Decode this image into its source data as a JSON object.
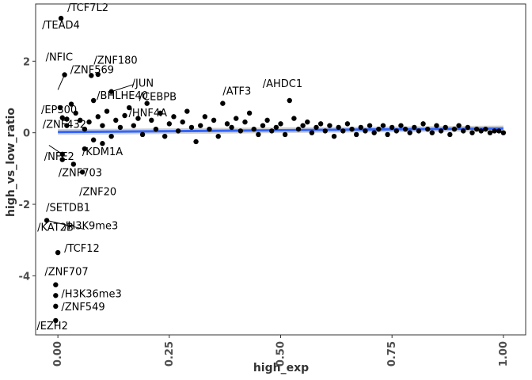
{
  "chart_data": {
    "type": "scatter",
    "xlabel": "high_exp",
    "ylabel": "high_vs_low_ratio",
    "xlim": [
      -0.05,
      1.05
    ],
    "ylim": [
      -5.65,
      3.6
    ],
    "x_ticks": [
      0.0,
      0.25,
      0.5,
      0.75,
      1.0
    ],
    "x_tick_labels": [
      "0.00",
      "0.25",
      "0.50",
      "0.75",
      "1.00"
    ],
    "y_ticks": [
      -4,
      -2,
      0,
      2
    ],
    "y_tick_labels": [
      "-4",
      "-2",
      "0",
      "2"
    ],
    "grid": false,
    "legend": "none",
    "colors": {
      "points": "#000000",
      "trend": "#3366FF",
      "band": "#b3b3b3",
      "frame": "#333333"
    },
    "trend_line": {
      "x": [
        0.0,
        1.0
      ],
      "y": [
        0.02,
        0.12
      ]
    },
    "labeled_points": [
      {
        "label": "/TCF7L2",
        "x": 0.007,
        "y": 3.2
      },
      {
        "label": "/TEAD4",
        "x": 0.007,
        "y": 3.2
      },
      {
        "label": "/NFIC",
        "x": 0.015,
        "y": 1.62
      },
      {
        "label": "/ZNF180",
        "x": 0.075,
        "y": 1.6
      },
      {
        "label": "/ZNF569",
        "x": 0.065,
        "y": 1.62
      },
      {
        "label": "/JUN",
        "x": 0.12,
        "y": 1.15
      },
      {
        "label": "/EP300",
        "x": 0.005,
        "y": 0.7
      },
      {
        "label": "/BHLHE40",
        "x": 0.08,
        "y": 0.9
      },
      {
        "label": "/CEBPB",
        "x": 0.2,
        "y": 0.82
      },
      {
        "label": "/ATF3",
        "x": 0.37,
        "y": 0.82
      },
      {
        "label": "/ZNF432",
        "x": 0.01,
        "y": 0.42
      },
      {
        "label": "/HNF4A",
        "x": 0.15,
        "y": 0.48
      },
      {
        "label": "/AHDC1",
        "x": 0.52,
        "y": 0.9
      },
      {
        "label": "/NFE2",
        "x": 0.01,
        "y": -0.6
      },
      {
        "label": "/KDM1A",
        "x": 0.06,
        "y": -0.45
      },
      {
        "label": "/ZNF703",
        "x": 0.01,
        "y": -0.75
      },
      {
        "label": "/ZNF20",
        "x": 0.055,
        "y": -1.1
      },
      {
        "label": "/SETDB1",
        "x": -0.025,
        "y": -2.45
      },
      {
        "label": "/KAT2B",
        "x": -0.025,
        "y": -2.45
      },
      {
        "label": "/H3K9me3",
        "x": -0.025,
        "y": -2.45
      },
      {
        "label": "/TCF12",
        "x": 0.0,
        "y": -3.35
      },
      {
        "label": "/ZNF707",
        "x": -0.005,
        "y": -4.25
      },
      {
        "label": "/H3K36me3",
        "x": -0.005,
        "y": -4.55
      },
      {
        "label": "/ZNF549",
        "x": -0.005,
        "y": -4.85
      },
      {
        "label": "/EZH2",
        "x": -0.005,
        "y": -5.25
      }
    ],
    "points": [
      [
        0.007,
        3.2
      ],
      [
        0.015,
        1.62
      ],
      [
        0.075,
        1.6
      ],
      [
        0.09,
        1.63
      ],
      [
        0.12,
        1.15
      ],
      [
        0.005,
        0.7
      ],
      [
        0.03,
        0.8
      ],
      [
        0.08,
        0.9
      ],
      [
        0.2,
        0.82
      ],
      [
        0.37,
        0.82
      ],
      [
        0.52,
        0.9
      ],
      [
        0.01,
        0.42
      ],
      [
        0.02,
        0.38
      ],
      [
        0.15,
        0.48
      ],
      [
        0.01,
        -0.6
      ],
      [
        0.01,
        -0.75
      ],
      [
        0.035,
        -0.88
      ],
      [
        0.06,
        -0.45
      ],
      [
        0.055,
        -1.1
      ],
      [
        -0.025,
        -2.45
      ],
      [
        0.0,
        -3.35
      ],
      [
        -0.005,
        -4.25
      ],
      [
        -0.005,
        -4.55
      ],
      [
        -0.005,
        -4.85
      ],
      [
        -0.005,
        -5.25
      ],
      [
        0.02,
        0.2
      ],
      [
        0.04,
        0.55
      ],
      [
        0.05,
        0.35
      ],
      [
        0.06,
        0.1
      ],
      [
        0.07,
        0.3
      ],
      [
        0.08,
        -0.2
      ],
      [
        0.09,
        0.45
      ],
      [
        0.1,
        0.2
      ],
      [
        0.1,
        -0.3
      ],
      [
        0.11,
        0.6
      ],
      [
        0.12,
        -0.1
      ],
      [
        0.13,
        0.35
      ],
      [
        0.14,
        0.15
      ],
      [
        0.16,
        0.7
      ],
      [
        0.17,
        0.2
      ],
      [
        0.18,
        0.4
      ],
      [
        0.19,
        -0.05
      ],
      [
        0.21,
        0.35
      ],
      [
        0.22,
        0.1
      ],
      [
        0.23,
        0.55
      ],
      [
        0.24,
        -0.1
      ],
      [
        0.25,
        0.25
      ],
      [
        0.26,
        0.45
      ],
      [
        0.27,
        0.05
      ],
      [
        0.28,
        0.3
      ],
      [
        0.29,
        0.6
      ],
      [
        0.3,
        0.15
      ],
      [
        0.31,
        -0.25
      ],
      [
        0.32,
        0.2
      ],
      [
        0.33,
        0.45
      ],
      [
        0.34,
        0.1
      ],
      [
        0.35,
        0.35
      ],
      [
        0.36,
        -0.1
      ],
      [
        0.38,
        0.25
      ],
      [
        0.39,
        0.15
      ],
      [
        0.4,
        0.4
      ],
      [
        0.41,
        0.05
      ],
      [
        0.42,
        0.3
      ],
      [
        0.43,
        0.55
      ],
      [
        0.44,
        0.1
      ],
      [
        0.45,
        -0.05
      ],
      [
        0.46,
        0.2
      ],
      [
        0.47,
        0.35
      ],
      [
        0.48,
        0.05
      ],
      [
        0.49,
        0.15
      ],
      [
        0.5,
        0.25
      ],
      [
        0.51,
        -0.05
      ],
      [
        0.53,
        0.4
      ],
      [
        0.54,
        0.1
      ],
      [
        0.55,
        0.2
      ],
      [
        0.56,
        0.3
      ],
      [
        0.57,
        0.0
      ],
      [
        0.58,
        0.15
      ],
      [
        0.59,
        0.25
      ],
      [
        0.6,
        0.05
      ],
      [
        0.61,
        0.2
      ],
      [
        0.62,
        -0.1
      ],
      [
        0.63,
        0.15
      ],
      [
        0.64,
        0.05
      ],
      [
        0.65,
        0.25
      ],
      [
        0.66,
        0.1
      ],
      [
        0.67,
        -0.05
      ],
      [
        0.68,
        0.15
      ],
      [
        0.69,
        0.05
      ],
      [
        0.7,
        0.2
      ],
      [
        0.71,
        0.0
      ],
      [
        0.72,
        0.1
      ],
      [
        0.73,
        0.2
      ],
      [
        0.74,
        -0.05
      ],
      [
        0.75,
        0.15
      ],
      [
        0.76,
        0.05
      ],
      [
        0.77,
        0.2
      ],
      [
        0.78,
        0.1
      ],
      [
        0.79,
        0.0
      ],
      [
        0.8,
        0.15
      ],
      [
        0.81,
        0.05
      ],
      [
        0.82,
        0.25
      ],
      [
        0.83,
        0.1
      ],
      [
        0.84,
        0.0
      ],
      [
        0.85,
        0.2
      ],
      [
        0.86,
        0.05
      ],
      [
        0.87,
        0.15
      ],
      [
        0.88,
        -0.05
      ],
      [
        0.89,
        0.1
      ],
      [
        0.9,
        0.2
      ],
      [
        0.91,
        0.05
      ],
      [
        0.92,
        0.15
      ],
      [
        0.93,
        0.0
      ],
      [
        0.94,
        0.1
      ],
      [
        0.95,
        0.05
      ],
      [
        0.96,
        0.1
      ],
      [
        0.97,
        0.0
      ],
      [
        0.98,
        0.05
      ],
      [
        0.99,
        0.05
      ],
      [
        1.0,
        0.0
      ]
    ]
  }
}
